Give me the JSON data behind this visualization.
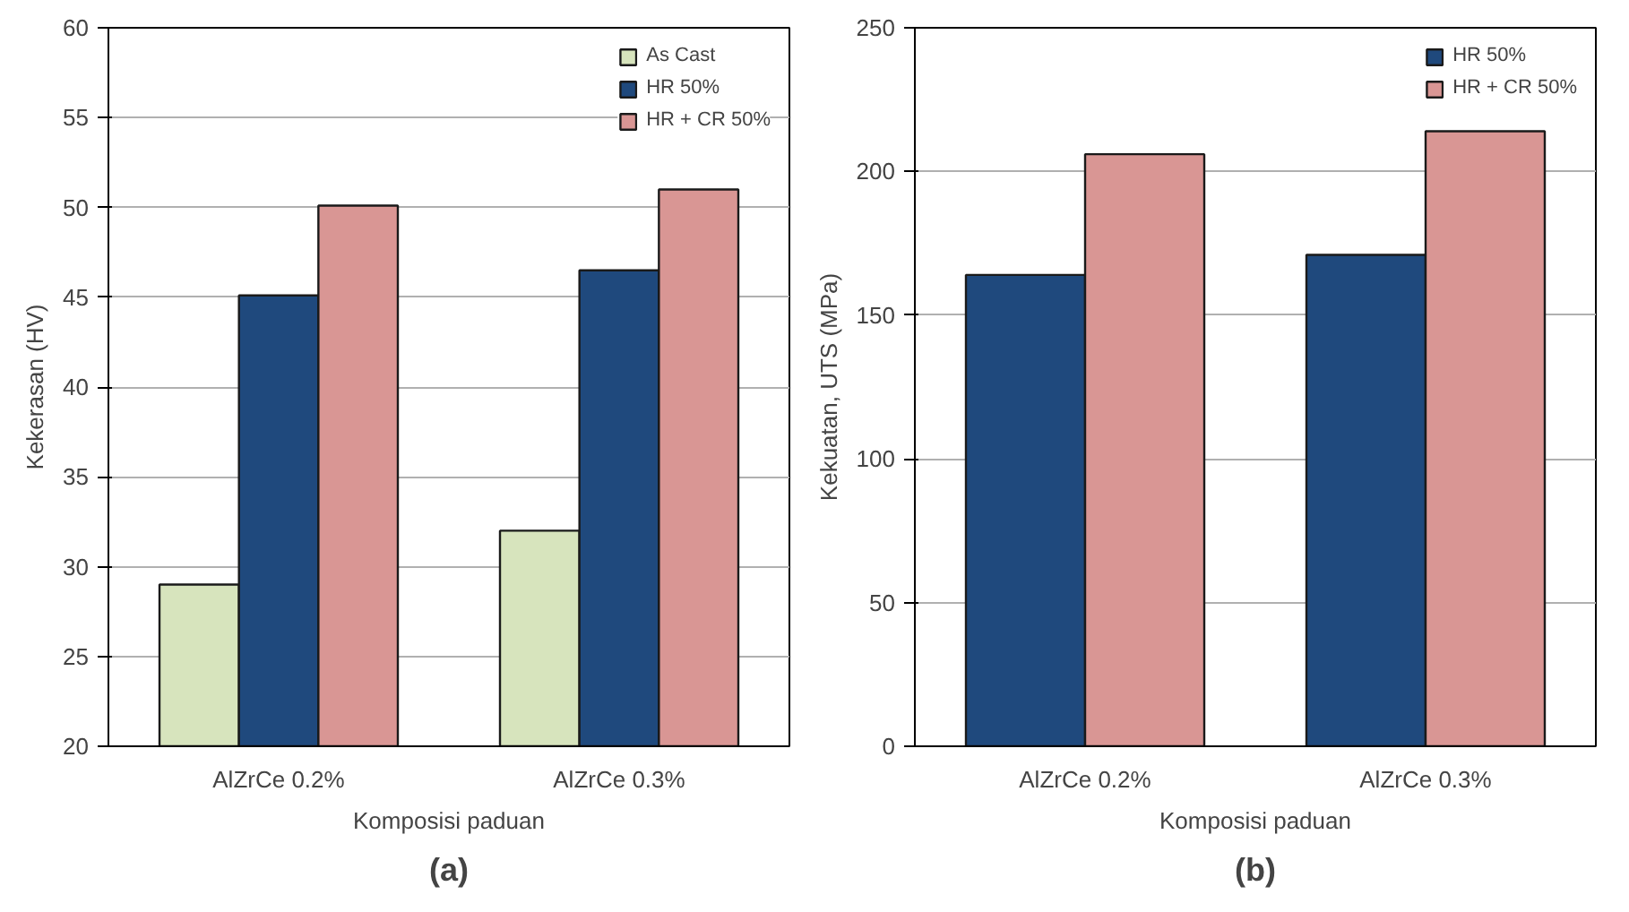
{
  "chart_data": [
    {
      "type": "bar",
      "categories": [
        "AlZrCe 0.2%",
        "AlZrCe 0.3%"
      ],
      "xlabel": "Komposisi paduan",
      "ylabel": "Kekerasan (HV)",
      "series": [
        {
          "name": "As Cast",
          "color": "#d7e4bd",
          "values": [
            29,
            32
          ]
        },
        {
          "name": "HR 50%",
          "color": "#1f497d",
          "values": [
            45.1,
            46.5
          ]
        },
        {
          "name": "HR + CR 50%",
          "color": "#d99694",
          "values": [
            50.1,
            51.0
          ]
        }
      ],
      "ylim": [
        20,
        60
      ],
      "yticks": [
        20,
        25,
        30,
        35,
        40,
        45,
        50,
        55,
        60
      ],
      "grid": "y",
      "legend": "top right",
      "annotations": [
        "(a)"
      ]
    },
    {
      "type": "bar",
      "categories": [
        "AlZrCe 0.2%",
        "AlZrCe 0.3%"
      ],
      "xlabel": "Komposisi paduan",
      "ylabel": "Kekuatan, UTS (MPa)",
      "series": [
        {
          "name": "HR 50%",
          "color": "#1f497d",
          "values": [
            164,
            171
          ]
        },
        {
          "name": "HR + CR 50%",
          "color": "#d99694",
          "values": [
            206,
            214
          ]
        }
      ],
      "ylim": [
        0,
        250
      ],
      "yticks": [
        0,
        50,
        100,
        150,
        200,
        250
      ],
      "grid": "y",
      "legend": "top right",
      "annotations": [
        "(b)"
      ]
    }
  ]
}
